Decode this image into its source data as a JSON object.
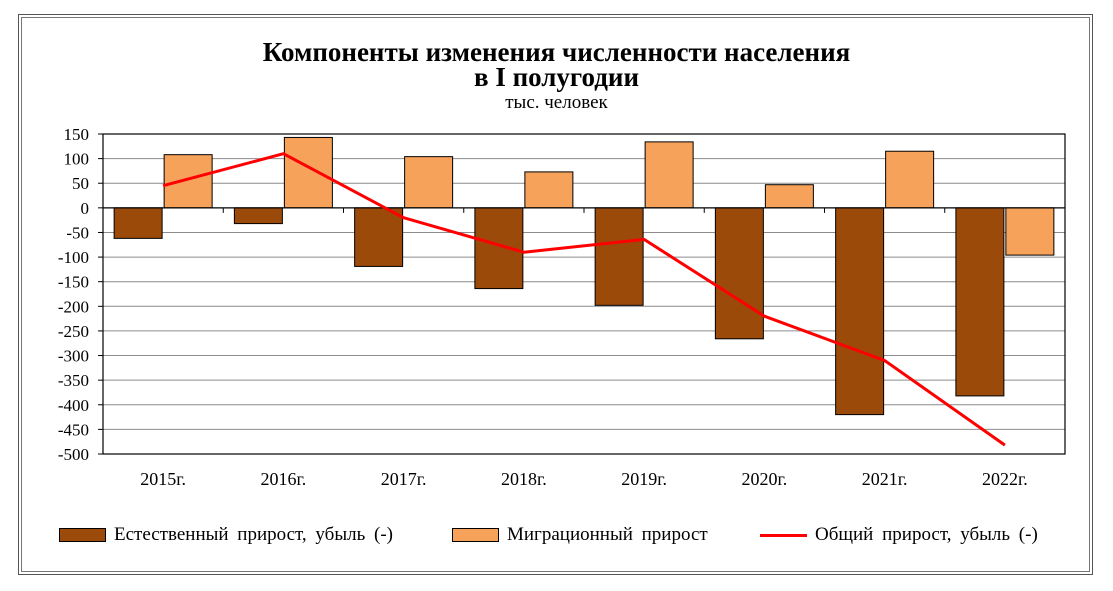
{
  "chart_data": {
    "type": "bar",
    "title_line1": "Компоненты изменения численности населения",
    "title_line2": "в I полугодии",
    "subtitle": "тыс. человек",
    "categories": [
      "2015г.",
      "2016г.",
      "2017г.",
      "2018г.",
      "2019г.",
      "2020г.",
      "2021г.",
      "2022г."
    ],
    "ylim": [
      -500,
      150
    ],
    "yticks": [
      150,
      100,
      50,
      0,
      -50,
      -100,
      -150,
      -200,
      -250,
      -300,
      -350,
      -400,
      -450,
      -500
    ],
    "grid": true,
    "legend_position": "bottom",
    "series": [
      {
        "name": "Естественный прирост, убыль (-)",
        "kind": "bar",
        "color": "#9b4a0a",
        "values": [
          -62,
          -32,
          -119,
          -164,
          -198,
          -266,
          -420,
          -382
        ]
      },
      {
        "name": "Миграционный прирост",
        "kind": "bar",
        "color": "#f7a25a",
        "values": [
          108,
          143,
          104,
          73,
          134,
          47,
          115,
          -96
        ]
      },
      {
        "name": "Общий прирост, убыль (-)",
        "kind": "line",
        "color": "#ff0000",
        "values": [
          45,
          110,
          -20,
          -90,
          -64,
          -220,
          -310,
          -482
        ]
      }
    ]
  }
}
